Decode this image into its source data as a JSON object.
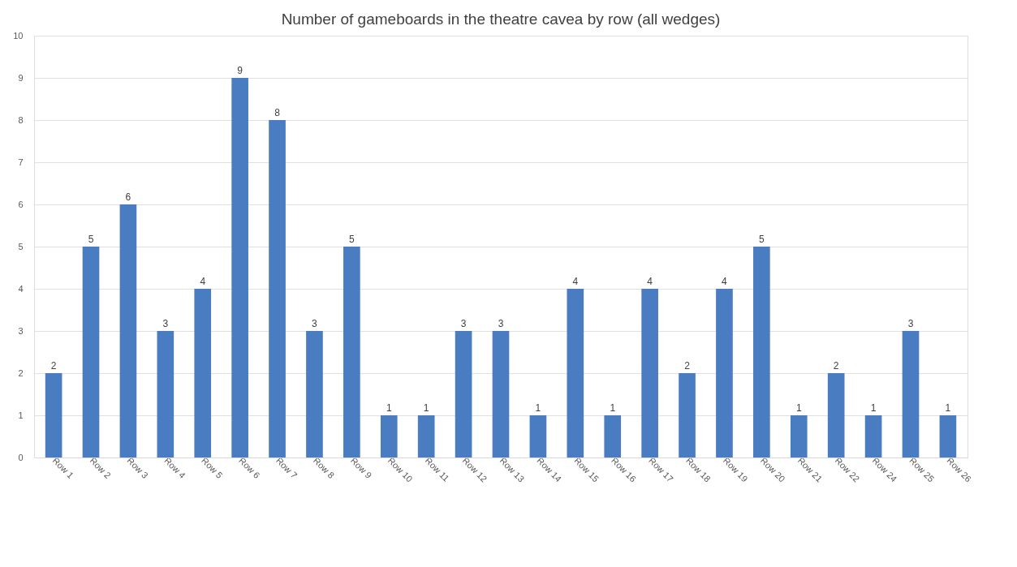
{
  "chart_data": {
    "type": "bar",
    "title": "Number of gameboards in the theatre cavea by row (all wedges)",
    "categories": [
      "Row 1",
      "Row 2",
      "Row 3",
      "Row 4",
      "Row 5",
      "Row 6",
      "Row 7",
      "Row 8",
      "Row 9",
      "Row 10",
      "Row 11",
      "Row 12",
      "Row 13",
      "Row 14",
      "Row 15",
      "Row 16",
      "Row 17",
      "Row 18",
      "Row 19",
      "Row 20",
      "Row 21",
      "Row 22",
      "Row 24",
      "Row 25",
      "Row 26"
    ],
    "values": [
      2,
      5,
      6,
      3,
      4,
      9,
      8,
      3,
      5,
      1,
      1,
      3,
      3,
      1,
      4,
      1,
      4,
      2,
      4,
      5,
      1,
      2,
      1,
      3,
      1
    ],
    "color": "#4a7cc2",
    "ylim": [
      0,
      10
    ],
    "yticks": [
      0,
      1,
      2,
      3,
      4,
      5,
      6,
      7,
      8,
      9,
      10
    ],
    "grid": "y",
    "data_labels": true
  }
}
